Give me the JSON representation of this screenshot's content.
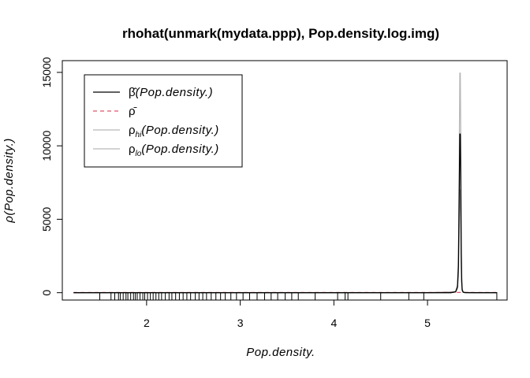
{
  "chart_data": {
    "type": "line",
    "title": "rhohat(unmark(mydata.ppp), Pop.density.log.img)",
    "xlabel": "Pop.density.",
    "ylabel": "ρ(Pop.density.)",
    "xlim": [
      1.1,
      5.85
    ],
    "ylim": [
      -500,
      15800
    ],
    "xticks": [
      2,
      3,
      4,
      5
    ],
    "xtick_labels": [
      "2",
      "3",
      "4",
      "5"
    ],
    "yticks": [
      0,
      5000,
      10000,
      15000
    ],
    "ytick_labels": [
      "0",
      "5000",
      "10000",
      "15000"
    ],
    "grid": false,
    "legend_position": "top-left",
    "series": [
      {
        "name": "β̂(Pop.density.)",
        "color": "#000000",
        "style": "solid",
        "x": [
          1.22,
          2.0,
          3.0,
          4.0,
          5.0,
          5.25,
          5.3,
          5.32,
          5.33,
          5.34,
          5.345,
          5.35,
          5.355,
          5.36,
          5.365,
          5.37,
          5.38,
          5.4,
          5.5,
          5.74
        ],
        "y": [
          0,
          0,
          0,
          0,
          0,
          0,
          60,
          400,
          1800,
          7500,
          10800,
          10800,
          7500,
          2600,
          800,
          200,
          40,
          5,
          0,
          0
        ]
      },
      {
        "name": "ρ̄",
        "color": "#DF536B",
        "style": "dashed",
        "x": [
          1.22,
          5.74
        ],
        "y": [
          15,
          15
        ]
      },
      {
        "name": "ρ_hi(Pop.density.)",
        "color": "#b8b8b8",
        "style": "solid",
        "x": [
          1.22,
          5.0,
          5.3,
          5.32,
          5.33,
          5.34,
          5.345,
          5.35,
          5.355,
          5.36,
          5.365,
          5.37,
          5.38,
          5.4,
          5.74
        ],
        "y": [
          0,
          0,
          80,
          550,
          2500,
          10400,
          14950,
          14950,
          10400,
          3600,
          1100,
          280,
          60,
          5,
          0
        ]
      },
      {
        "name": "ρ_lo(Pop.density.)",
        "color": "#b8b8b8",
        "style": "solid",
        "x": [
          1.22,
          5.0,
          5.3,
          5.32,
          5.33,
          5.34,
          5.345,
          5.35,
          5.355,
          5.36,
          5.365,
          5.37,
          5.38,
          5.4,
          5.74
        ],
        "y": [
          0,
          0,
          40,
          260,
          1200,
          4900,
          7000,
          7000,
          4900,
          1700,
          520,
          130,
          25,
          3,
          0
        ]
      }
    ],
    "rug": [
      1.5,
      1.62,
      1.66,
      1.7,
      1.72,
      1.75,
      1.78,
      1.8,
      1.83,
      1.86,
      1.88,
      1.9,
      1.93,
      1.96,
      1.98,
      2.01,
      2.04,
      2.07,
      2.1,
      2.13,
      2.16,
      2.2,
      2.24,
      2.27,
      2.31,
      2.35,
      2.39,
      2.43,
      2.47,
      2.52,
      2.56,
      2.6,
      2.64,
      2.69,
      2.74,
      2.79,
      2.84,
      2.9,
      2.96,
      3.03,
      3.1,
      3.18,
      3.26,
      3.33,
      3.4,
      3.48,
      3.55,
      3.62,
      3.8,
      4.04,
      4.12,
      4.15,
      4.5,
      4.8,
      4.96,
      5.74
    ],
    "legend": [
      {
        "symbol": "β̂",
        "arg": "(Pop.density.)",
        "color": "#000000",
        "style": "solid"
      },
      {
        "symbol": "ρ̄",
        "arg": "",
        "color": "#DF536B",
        "style": "dashed"
      },
      {
        "symbol": "ρ",
        "sub": "hi",
        "arg": "(Pop.density.)",
        "color": "#b8b8b8",
        "style": "solid"
      },
      {
        "symbol": "ρ",
        "sub": "lo",
        "arg": "(Pop.density.)",
        "color": "#b8b8b8",
        "style": "solid"
      }
    ]
  }
}
